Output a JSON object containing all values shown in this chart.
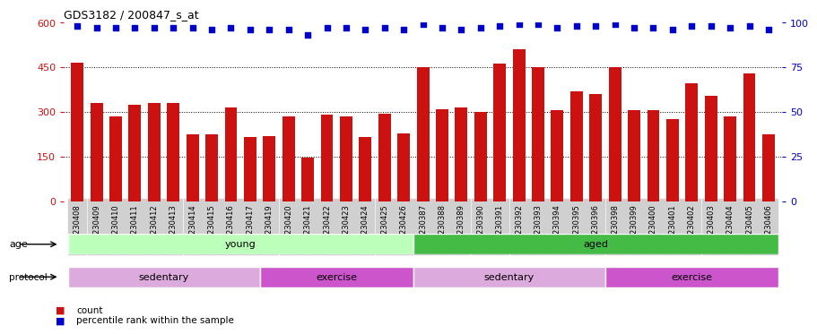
{
  "title": "GDS3182 / 200847_s_at",
  "samples": [
    "GSM230408",
    "GSM230409",
    "GSM230410",
    "GSM230411",
    "GSM230412",
    "GSM230413",
    "GSM230414",
    "GSM230415",
    "GSM230416",
    "GSM230417",
    "GSM230419",
    "GSM230420",
    "GSM230421",
    "GSM230422",
    "GSM230423",
    "GSM230424",
    "GSM230425",
    "GSM230426",
    "GSM230387",
    "GSM230388",
    "GSM230389",
    "GSM230390",
    "GSM230391",
    "GSM230392",
    "GSM230393",
    "GSM230394",
    "GSM230395",
    "GSM230396",
    "GSM230398",
    "GSM230399",
    "GSM230400",
    "GSM230401",
    "GSM230402",
    "GSM230403",
    "GSM230404",
    "GSM230405",
    "GSM230406"
  ],
  "counts": [
    465,
    330,
    285,
    325,
    330,
    330,
    225,
    225,
    315,
    215,
    220,
    285,
    148,
    290,
    285,
    215,
    295,
    228,
    450,
    310,
    315,
    300,
    462,
    510,
    450,
    305,
    370,
    360,
    450,
    305,
    305,
    275,
    395,
    355,
    285,
    430,
    225
  ],
  "percentile_ranks": [
    98,
    97,
    97,
    97,
    97,
    97,
    97,
    96,
    97,
    96,
    96,
    96,
    93,
    97,
    97,
    96,
    97,
    96,
    99,
    97,
    96,
    97,
    98,
    99,
    99,
    97,
    98,
    98,
    99,
    97,
    97,
    96,
    98,
    98,
    97,
    98,
    96
  ],
  "bar_color": "#cc1111",
  "dot_color": "#0000cc",
  "left_yaxis_color": "#cc1111",
  "right_yaxis_color": "#0000cc",
  "ylim_left": [
    0,
    600
  ],
  "ylim_right": [
    0,
    100
  ],
  "yticks_left": [
    0,
    150,
    300,
    450,
    600
  ],
  "yticks_right": [
    0,
    25,
    50,
    75,
    100
  ],
  "age_groups": [
    {
      "label": "young",
      "start": 0,
      "end": 18,
      "color": "#bbffbb"
    },
    {
      "label": "aged",
      "start": 18,
      "end": 37,
      "color": "#44bb44"
    }
  ],
  "protocol_groups": [
    {
      "label": "sedentary",
      "start": 0,
      "end": 10,
      "color": "#ddaadd"
    },
    {
      "label": "exercise",
      "start": 10,
      "end": 18,
      "color": "#cc55cc"
    },
    {
      "label": "sedentary",
      "start": 18,
      "end": 28,
      "color": "#ddaadd"
    },
    {
      "label": "exercise",
      "start": 28,
      "end": 37,
      "color": "#cc55cc"
    }
  ],
  "legend_count_color": "#cc1111",
  "legend_pct_color": "#0000cc",
  "background_color": "#ffffff",
  "tick_bg_color": "#d0d0d0"
}
